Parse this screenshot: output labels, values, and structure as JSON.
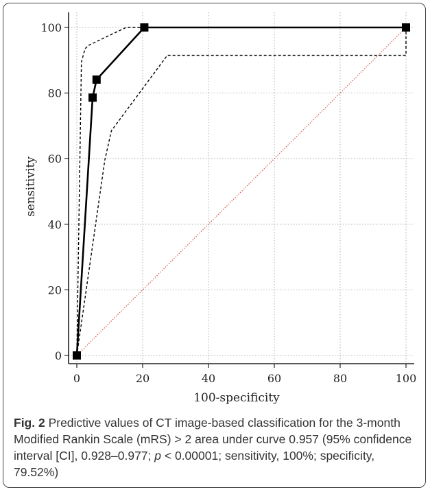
{
  "chart_data": {
    "type": "line",
    "xlabel": "100-specificity",
    "ylabel": "sensitivity",
    "xlim": [
      0,
      100
    ],
    "ylim": [
      0,
      100
    ],
    "x_ticks": [
      0,
      20,
      40,
      60,
      80,
      100
    ],
    "y_ticks": [
      0,
      20,
      40,
      60,
      80,
      100
    ],
    "grid": true,
    "series": [
      {
        "role": "roc-curve",
        "style": "solid",
        "color": "#000000",
        "markers": "square",
        "x": [
          0,
          4.8,
          6.0,
          20.5,
          100
        ],
        "y": [
          0,
          78.6,
          84.1,
          100,
          100
        ]
      },
      {
        "role": "confidence-upper",
        "style": "dashed",
        "color": "#000000",
        "x": [
          0,
          1.4,
          2.5,
          3.5,
          15,
          100
        ],
        "y": [
          0,
          89.5,
          93.5,
          94.5,
          100,
          100
        ]
      },
      {
        "role": "confidence-lower",
        "style": "dashed",
        "color": "#000000",
        "x": [
          0,
          8.5,
          10.5,
          27.5,
          100,
          100
        ],
        "y": [
          0,
          59.5,
          68.5,
          91.5,
          91.5,
          100
        ]
      },
      {
        "role": "reference-diagonal",
        "style": "dotted",
        "color": "#d9534f",
        "x": [
          0,
          100
        ],
        "y": [
          0,
          100
        ]
      }
    ]
  },
  "caption": {
    "label": "Fig. 2",
    "text_1": " Predictive values of CT image-based classification for the 3-month Modified Rankin Scale (mRS) > 2 area under curve 0.957 (95% confidence interval [CI], 0.928–0.977; ",
    "p": "p",
    "text_2": " < 0.00001; sensitivity, 100%; specificity, 79.52%)"
  }
}
